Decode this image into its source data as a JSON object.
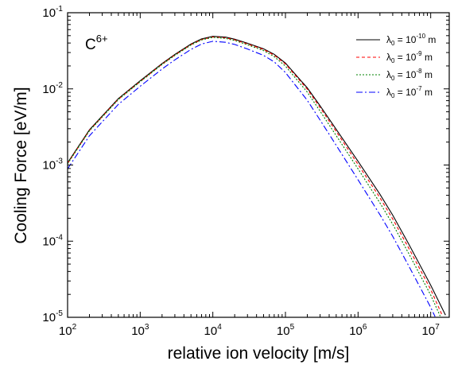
{
  "chart_data": {
    "type": "line",
    "title": "",
    "xlabel": "relative ion velocity [m/s]",
    "ylabel": "Cooling Force [eV/m]",
    "xscale": "log",
    "yscale": "log",
    "xlim": [
      100,
      18000000
    ],
    "ylim": [
      1e-05,
      0.1
    ],
    "x_ticks": [
      {
        "base": "10",
        "exp": "2",
        "value": 100
      },
      {
        "base": "10",
        "exp": "3",
        "value": 1000
      },
      {
        "base": "10",
        "exp": "4",
        "value": 10000
      },
      {
        "base": "10",
        "exp": "5",
        "value": 100000
      },
      {
        "base": "10",
        "exp": "6",
        "value": 1000000
      },
      {
        "base": "10",
        "exp": "7",
        "value": 10000000
      }
    ],
    "y_ticks": [
      {
        "base": "10",
        "exp": "-5",
        "value": 1e-05
      },
      {
        "base": "10",
        "exp": "-4",
        "value": 0.0001
      },
      {
        "base": "10",
        "exp": "-3",
        "value": 0.001
      },
      {
        "base": "10",
        "exp": "-2",
        "value": 0.01
      },
      {
        "base": "10",
        "exp": "-1",
        "value": 0.1
      }
    ],
    "annotation": {
      "base": "C",
      "sup": "6+"
    },
    "legend_position": "top-right",
    "grid": false,
    "series": [
      {
        "label": {
          "prefix": "λ",
          "sub": "0",
          "mid": " = 10",
          "sup": "-10",
          "suffix": " m"
        },
        "color": "#000000",
        "dash": "",
        "x": [
          100,
          200,
          500,
          1000,
          2000,
          3000,
          5000,
          7000,
          10000,
          15000,
          20000,
          30000,
          50000,
          70000,
          100000,
          200000,
          300000,
          500000,
          1000000,
          2000000,
          3000000,
          5000000,
          10000000,
          16000000
        ],
        "y": [
          0.00107,
          0.0029,
          0.00745,
          0.0128,
          0.0215,
          0.0283,
          0.0388,
          0.0453,
          0.049,
          0.0478,
          0.0449,
          0.0397,
          0.0336,
          0.0284,
          0.0218,
          0.0103,
          0.00598,
          0.00294,
          0.00112,
          0.000414,
          0.00022,
          9.11e-05,
          2.64e-05,
          1.07e-05
        ]
      },
      {
        "label": {
          "prefix": "λ",
          "sub": "0",
          "mid": " = 10",
          "sup": "-9",
          "suffix": " m"
        },
        "color": "#ff0000",
        "dash": "4,3",
        "x": [
          100,
          200,
          500,
          1000,
          2000,
          3000,
          5000,
          7000,
          10000,
          15000,
          20000,
          30000,
          50000,
          70000,
          100000,
          200000,
          300000,
          500000,
          1000000,
          2000000,
          3000000,
          5000000,
          10000000,
          14500000
        ],
        "y": [
          0.00105,
          0.00284,
          0.0073,
          0.0125,
          0.0211,
          0.0278,
          0.0381,
          0.0444,
          0.048,
          0.0468,
          0.044,
          0.0389,
          0.0329,
          0.0277,
          0.0212,
          0.0099,
          0.00568,
          0.00275,
          0.00102,
          0.000372,
          0.000196,
          8.07e-05,
          2.32e-05,
          1.05e-05
        ]
      },
      {
        "label": {
          "prefix": "λ",
          "sub": "0",
          "mid": " = 10",
          "sup": "-8",
          "suffix": " m"
        },
        "color": "#008000",
        "dash": "2,2",
        "x": [
          100,
          200,
          500,
          1000,
          2000,
          3000,
          5000,
          7000,
          10000,
          15000,
          20000,
          30000,
          50000,
          70000,
          100000,
          200000,
          300000,
          500000,
          1000000,
          2000000,
          3000000,
          5000000,
          10000000,
          13500000
        ],
        "y": [
          0.00104,
          0.00281,
          0.00722,
          0.0124,
          0.0209,
          0.0275,
          0.0377,
          0.0439,
          0.0474,
          0.046,
          0.0431,
          0.0379,
          0.0318,
          0.0265,
          0.0199,
          0.00905,
          0.0051,
          0.00243,
          0.00089,
          0.000318,
          0.000167,
          6.85e-05,
          1.96e-05,
          1.04e-05
        ]
      },
      {
        "label": {
          "prefix": "λ",
          "sub": "0",
          "mid": " = 10",
          "sup": "-7",
          "suffix": " m"
        },
        "color": "#0000ff",
        "dash": "8,3,2,3",
        "x": [
          100,
          200,
          500,
          1000,
          2000,
          3000,
          5000,
          7000,
          10000,
          15000,
          20000,
          30000,
          50000,
          70000,
          100000,
          200000,
          300000,
          500000,
          1000000,
          2000000,
          3000000,
          5000000,
          10000000,
          11500000
        ],
        "y": [
          0.00089,
          0.00242,
          0.00625,
          0.0108,
          0.0182,
          0.024,
          0.033,
          0.0388,
          0.0422,
          0.0409,
          0.0383,
          0.0334,
          0.0275,
          0.0226,
          0.0164,
          0.00707,
          0.00389,
          0.00181,
          0.00064,
          0.000223,
          0.000116,
          4.7e-05,
          1.35e-05,
          1.02e-05
        ]
      }
    ]
  }
}
